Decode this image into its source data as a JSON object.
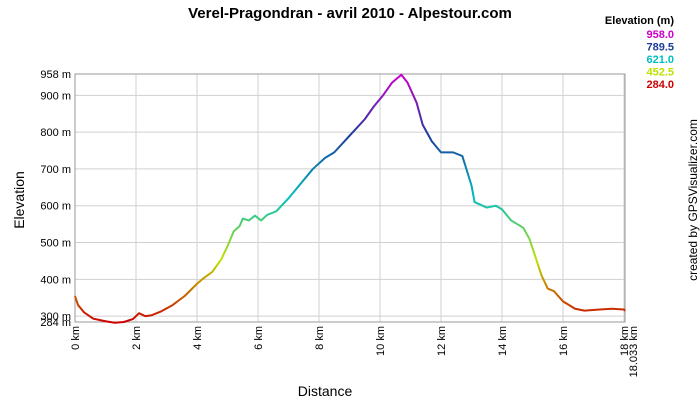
{
  "chart_data": {
    "type": "line",
    "title": "Verel-Pragondran - avril 2010 - Alpestour.com",
    "x_label": "Distance",
    "y_label": "Elevation",
    "credit": "created by GPSVisualizer.com",
    "legend_title": "Elevation (m)",
    "legend": [
      {
        "value": 958,
        "label": "958.0",
        "color": "#cc00cc"
      },
      {
        "value": 789.5,
        "label": "789.5",
        "color": "#1c3c9c"
      },
      {
        "value": 621,
        "label": "621.0",
        "color": "#00c0c0"
      },
      {
        "value": 452.5,
        "label": "452.5",
        "color": "#c0e000"
      },
      {
        "value": 284,
        "label": "284.0",
        "color": "#cc0000"
      }
    ],
    "xlim": [
      0,
      18.033
    ],
    "ylim": [
      284,
      958
    ],
    "xticks": [
      {
        "value": 0,
        "label": "0 km"
      },
      {
        "value": 2,
        "label": "2 km"
      },
      {
        "value": 4,
        "label": "4 km"
      },
      {
        "value": 6,
        "label": "6 km"
      },
      {
        "value": 8,
        "label": "8 km"
      },
      {
        "value": 10,
        "label": "10 km"
      },
      {
        "value": 12,
        "label": "12 km"
      },
      {
        "value": 14,
        "label": "14 km"
      },
      {
        "value": 16,
        "label": "16 km"
      },
      {
        "value": 18,
        "label": "18 km"
      },
      {
        "value": 18.033,
        "label": "18.033 km"
      }
    ],
    "yticks": [
      {
        "value": 284,
        "label": "284 m"
      },
      {
        "value": 300,
        "label": "300 m"
      },
      {
        "value": 400,
        "label": "400 m"
      },
      {
        "value": 500,
        "label": "500 m"
      },
      {
        "value": 600,
        "label": "600 m"
      },
      {
        "value": 700,
        "label": "700 m"
      },
      {
        "value": 800,
        "label": "800 m"
      },
      {
        "value": 900,
        "label": "900 m"
      },
      {
        "value": 958,
        "label": "958 m"
      }
    ],
    "grid": true,
    "x": [
      0,
      0.1,
      0.3,
      0.6,
      1.0,
      1.3,
      1.6,
      1.9,
      2.1,
      2.3,
      2.5,
      2.8,
      3.2,
      3.6,
      4.0,
      4.2,
      4.5,
      4.8,
      5.0,
      5.2,
      5.4,
      5.5,
      5.7,
      5.9,
      6.1,
      6.3,
      6.6,
      7.0,
      7.4,
      7.8,
      8.2,
      8.5,
      9.0,
      9.5,
      9.8,
      10.1,
      10.4,
      10.7,
      10.9,
      11.2,
      11.4,
      11.7,
      12.0,
      12.4,
      12.7,
      13.0,
      13.1,
      13.5,
      13.8,
      14.0,
      14.3,
      14.7,
      14.9,
      15.1,
      15.3,
      15.5,
      15.7,
      16.0,
      16.4,
      16.7,
      17.2,
      17.6,
      18.0,
      18.033
    ],
    "y": [
      355,
      330,
      310,
      293,
      286,
      282,
      284,
      292,
      308,
      300,
      302,
      312,
      330,
      355,
      388,
      402,
      420,
      455,
      490,
      530,
      545,
      565,
      560,
      573,
      560,
      575,
      585,
      620,
      660,
      700,
      730,
      745,
      790,
      835,
      870,
      900,
      935,
      956,
      935,
      880,
      820,
      775,
      745,
      745,
      735,
      655,
      610,
      595,
      600,
      590,
      560,
      540,
      510,
      460,
      410,
      375,
      368,
      340,
      320,
      315,
      318,
      320,
      318,
      314
    ]
  }
}
